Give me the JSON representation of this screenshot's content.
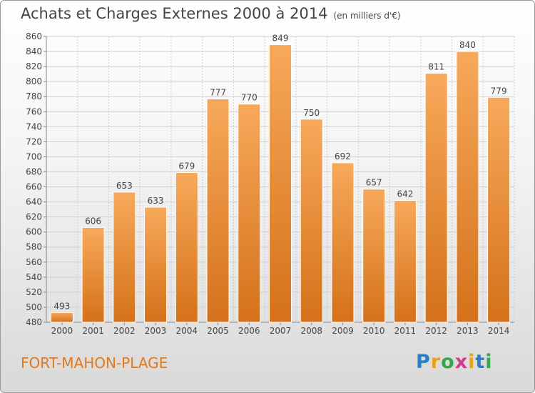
{
  "header": {
    "title": "Achats et Charges Externes 2000 à 2014",
    "subtitle": "(en milliers d'€)"
  },
  "footer": {
    "city": "FORT-MAHON-PLAGE",
    "logo_letters": [
      "P",
      "r",
      "o",
      "x",
      "i",
      "t",
      "i"
    ],
    "logo_colors": [
      "#2a7fc4",
      "#e8a21a",
      "#3aa64a",
      "#d23b8a",
      "#e8a21a",
      "#2a7fc4",
      "#3aa64a"
    ]
  },
  "colors": {
    "bar": "#f0922f",
    "bar_dark": "#e07a1c",
    "grid": "#cfcfcf",
    "text": "#444444"
  },
  "chart_data": {
    "type": "bar",
    "title": "Achats et Charges Externes 2000 à 2014",
    "subtitle": "(en milliers d'€)",
    "categories": [
      "2000",
      "2001",
      "2002",
      "2003",
      "2004",
      "2005",
      "2006",
      "2007",
      "2008",
      "2009",
      "2010",
      "2011",
      "2012",
      "2013",
      "2014"
    ],
    "values": [
      493,
      606,
      653,
      633,
      679,
      777,
      770,
      849,
      750,
      692,
      657,
      642,
      811,
      840,
      779
    ],
    "ylim": [
      480,
      860
    ],
    "yticks": [
      480,
      500,
      520,
      540,
      560,
      580,
      600,
      620,
      640,
      660,
      680,
      700,
      720,
      740,
      760,
      780,
      800,
      820,
      840,
      860
    ],
    "grid": true,
    "data_labels": true
  }
}
